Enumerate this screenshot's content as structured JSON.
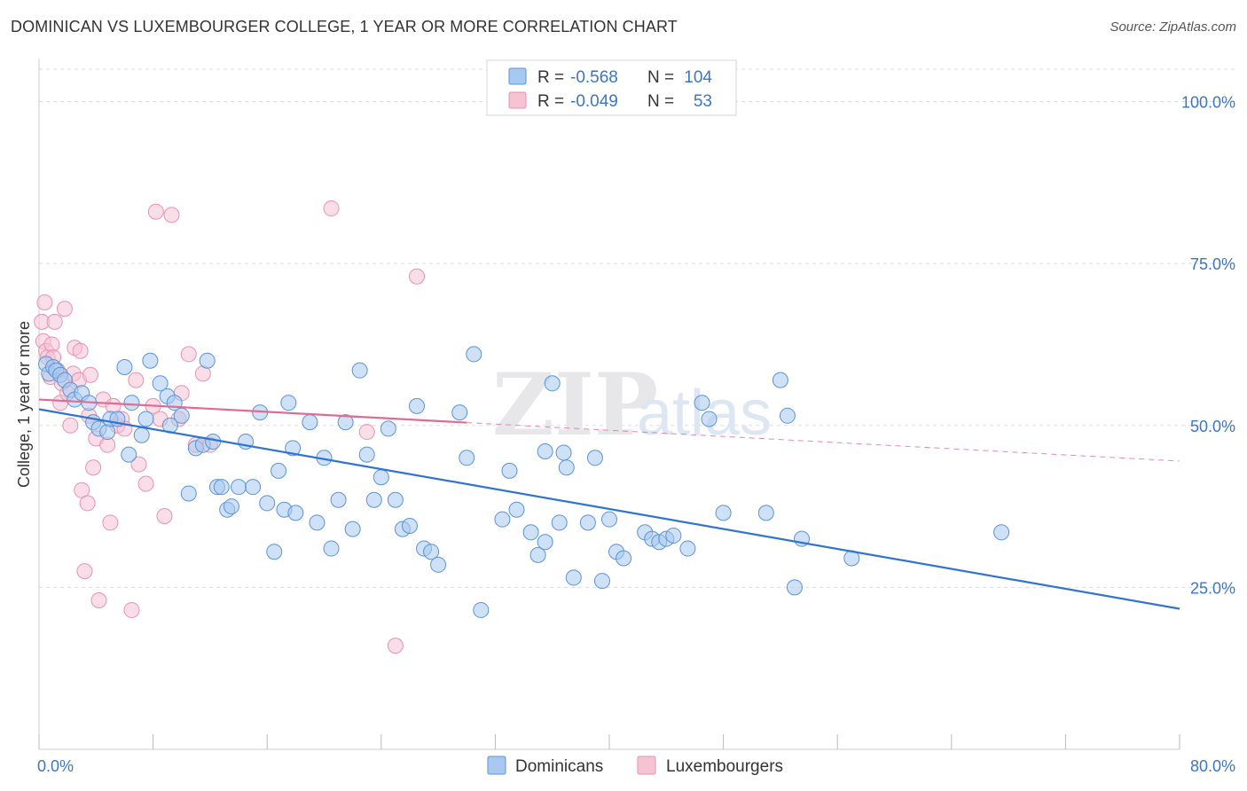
{
  "header": {
    "title": "DOMINICAN VS LUXEMBOURGER COLLEGE, 1 YEAR OR MORE CORRELATION CHART",
    "source": "Source: ZipAtlas.com"
  },
  "legend_top": [
    {
      "r_label": "R =",
      "r_value": "-0.568",
      "n_label": "N =",
      "n_value": "104"
    },
    {
      "r_label": "R =",
      "r_value": "-0.049",
      "n_label": "N =",
      "n_value": "53"
    }
  ],
  "watermark": {
    "zip": "ZIP",
    "atlas": "atlas"
  },
  "colors": {
    "dominicans_fill": "#a8c8f0",
    "dominicans_stroke": "#5b93d6",
    "dominicans_line": "#2f74d0",
    "luxembourgers_fill": "#f6c3d3",
    "luxembourgers_stroke": "#e892ae",
    "luxembourgers_line": "#e06b93",
    "axis_value_text": "#3d75c6",
    "grid": "#dddddd"
  },
  "chart_data": {
    "type": "scatter",
    "title": "DOMINICAN VS LUXEMBOURGER COLLEGE, 1 YEAR OR MORE CORRELATION CHART",
    "xlabel": "",
    "ylabel": "College, 1 year or more",
    "xlim": [
      0,
      80
    ],
    "ylim": [
      0,
      105
    ],
    "x_tick_labels": [
      {
        "value": 0,
        "label": "0.0%"
      },
      {
        "value": 80,
        "label": "80.0%"
      }
    ],
    "y_tick_labels": [
      {
        "value": 100,
        "label": "100.0%"
      },
      {
        "value": 75,
        "label": "75.0%"
      },
      {
        "value": 50,
        "label": "50.0%"
      },
      {
        "value": 25,
        "label": "25.0%"
      }
    ],
    "grid": true,
    "legend_position": "bottom-center",
    "series": [
      {
        "name": "Dominicans",
        "r": -0.568,
        "n": 104,
        "trend": {
          "x": [
            0,
            80
          ],
          "y": [
            52.5,
            21.7
          ],
          "dashed_after": null
        },
        "points": [
          [
            0.5,
            59.5
          ],
          [
            0.7,
            58
          ],
          [
            1,
            59
          ],
          [
            1.2,
            58.5
          ],
          [
            1.5,
            57.8
          ],
          [
            1.8,
            57
          ],
          [
            2.2,
            55.5
          ],
          [
            2.5,
            54
          ],
          [
            3,
            55
          ],
          [
            3.5,
            53.5
          ],
          [
            3.8,
            50.5
          ],
          [
            4.2,
            49.5
          ],
          [
            4.8,
            49
          ],
          [
            5,
            51
          ],
          [
            5.5,
            51
          ],
          [
            6,
            59
          ],
          [
            6.3,
            45.5
          ],
          [
            6.5,
            53.5
          ],
          [
            7.2,
            48.5
          ],
          [
            7.5,
            51
          ],
          [
            7.8,
            60
          ],
          [
            8.5,
            56.5
          ],
          [
            9,
            54.5
          ],
          [
            9.2,
            50
          ],
          [
            9.5,
            53.5
          ],
          [
            10,
            51.5
          ],
          [
            10.5,
            39.5
          ],
          [
            11,
            46.5
          ],
          [
            11.5,
            47
          ],
          [
            11.8,
            60
          ],
          [
            12.2,
            47.5
          ],
          [
            12.5,
            40.5
          ],
          [
            12.8,
            40.5
          ],
          [
            13.2,
            37
          ],
          [
            13.5,
            37.5
          ],
          [
            14,
            40.5
          ],
          [
            14.5,
            47.5
          ],
          [
            15,
            40.5
          ],
          [
            15.5,
            52
          ],
          [
            16,
            38
          ],
          [
            16.5,
            30.5
          ],
          [
            16.8,
            43
          ],
          [
            17.2,
            37
          ],
          [
            17.5,
            53.5
          ],
          [
            17.8,
            46.5
          ],
          [
            18,
            36.5
          ],
          [
            19,
            50.5
          ],
          [
            19.5,
            35
          ],
          [
            20,
            45
          ],
          [
            20.5,
            31
          ],
          [
            21,
            38.5
          ],
          [
            21.5,
            50.5
          ],
          [
            22,
            34
          ],
          [
            22.5,
            58.5
          ],
          [
            23,
            45.5
          ],
          [
            23.5,
            38.5
          ],
          [
            24,
            42
          ],
          [
            24.5,
            49.5
          ],
          [
            25,
            38.5
          ],
          [
            25.5,
            34
          ],
          [
            26,
            34.5
          ],
          [
            26.5,
            53
          ],
          [
            27,
            31
          ],
          [
            27.5,
            30.5
          ],
          [
            28,
            28.5
          ],
          [
            29.5,
            52
          ],
          [
            30,
            45
          ],
          [
            30.5,
            61
          ],
          [
            31,
            21.5
          ],
          [
            32.5,
            35.5
          ],
          [
            33,
            43
          ],
          [
            33.5,
            37
          ],
          [
            34.5,
            33.5
          ],
          [
            35,
            30
          ],
          [
            35.5,
            32
          ],
          [
            36,
            56.5
          ],
          [
            36.5,
            35
          ],
          [
            37,
            43.5
          ],
          [
            37.5,
            26.5
          ],
          [
            38.5,
            35
          ],
          [
            39,
            45
          ],
          [
            39.5,
            26
          ],
          [
            40,
            35.5
          ],
          [
            40.5,
            30.5
          ],
          [
            41,
            29.5
          ],
          [
            42.5,
            33.5
          ],
          [
            43,
            32.5
          ],
          [
            43.5,
            32
          ],
          [
            44,
            32.5
          ],
          [
            44.5,
            33
          ],
          [
            45.5,
            31
          ],
          [
            46.5,
            53.5
          ],
          [
            47,
            51
          ],
          [
            48,
            36.5
          ],
          [
            51,
            36.5
          ],
          [
            52,
            57
          ],
          [
            52.5,
            51.5
          ],
          [
            53,
            25
          ],
          [
            53.5,
            32.5
          ],
          [
            57,
            29.5
          ],
          [
            67.5,
            33.5
          ],
          [
            35.5,
            46
          ],
          [
            36.8,
            45.8
          ]
        ]
      },
      {
        "name": "Luxembourgers",
        "r": -0.049,
        "n": 53,
        "trend": {
          "x": [
            0,
            80
          ],
          "y": [
            54,
            44.5
          ],
          "solid_until_x": 30
        },
        "points": [
          [
            0.2,
            66
          ],
          [
            0.3,
            63
          ],
          [
            0.4,
            69
          ],
          [
            0.5,
            61.5
          ],
          [
            0.6,
            60.5
          ],
          [
            0.8,
            57.5
          ],
          [
            0.9,
            62.5
          ],
          [
            1.1,
            66
          ],
          [
            1.3,
            58.5
          ],
          [
            1.5,
            53.5
          ],
          [
            1.6,
            56.5
          ],
          [
            1.8,
            68
          ],
          [
            2,
            55
          ],
          [
            2.2,
            50
          ],
          [
            2.4,
            58
          ],
          [
            2.5,
            62
          ],
          [
            2.8,
            57
          ],
          [
            3,
            40
          ],
          [
            3.2,
            27.5
          ],
          [
            3.4,
            38
          ],
          [
            3.5,
            51.5
          ],
          [
            3.8,
            43.5
          ],
          [
            4,
            48
          ],
          [
            4.2,
            23
          ],
          [
            4.5,
            54
          ],
          [
            4.8,
            47
          ],
          [
            5,
            35
          ],
          [
            5.2,
            53
          ],
          [
            5.5,
            50
          ],
          [
            5.8,
            51
          ],
          [
            6,
            49.5
          ],
          [
            6.5,
            21.5
          ],
          [
            6.8,
            57
          ],
          [
            7,
            44
          ],
          [
            7.5,
            41
          ],
          [
            8,
            53
          ],
          [
            8.2,
            83
          ],
          [
            8.5,
            51
          ],
          [
            8.8,
            36
          ],
          [
            9.3,
            82.5
          ],
          [
            9.8,
            51
          ],
          [
            10,
            55
          ],
          [
            10.5,
            61
          ],
          [
            11,
            47
          ],
          [
            11.5,
            58
          ],
          [
            12,
            47
          ],
          [
            20.5,
            83.5
          ],
          [
            23,
            49
          ],
          [
            25,
            16
          ],
          [
            26.5,
            73
          ],
          [
            1,
            60.5
          ],
          [
            3.6,
            57.8
          ],
          [
            2.9,
            61.5
          ]
        ]
      }
    ]
  },
  "legend_bottom": [
    {
      "label": "Dominicans"
    },
    {
      "label": "Luxembourgers"
    }
  ]
}
